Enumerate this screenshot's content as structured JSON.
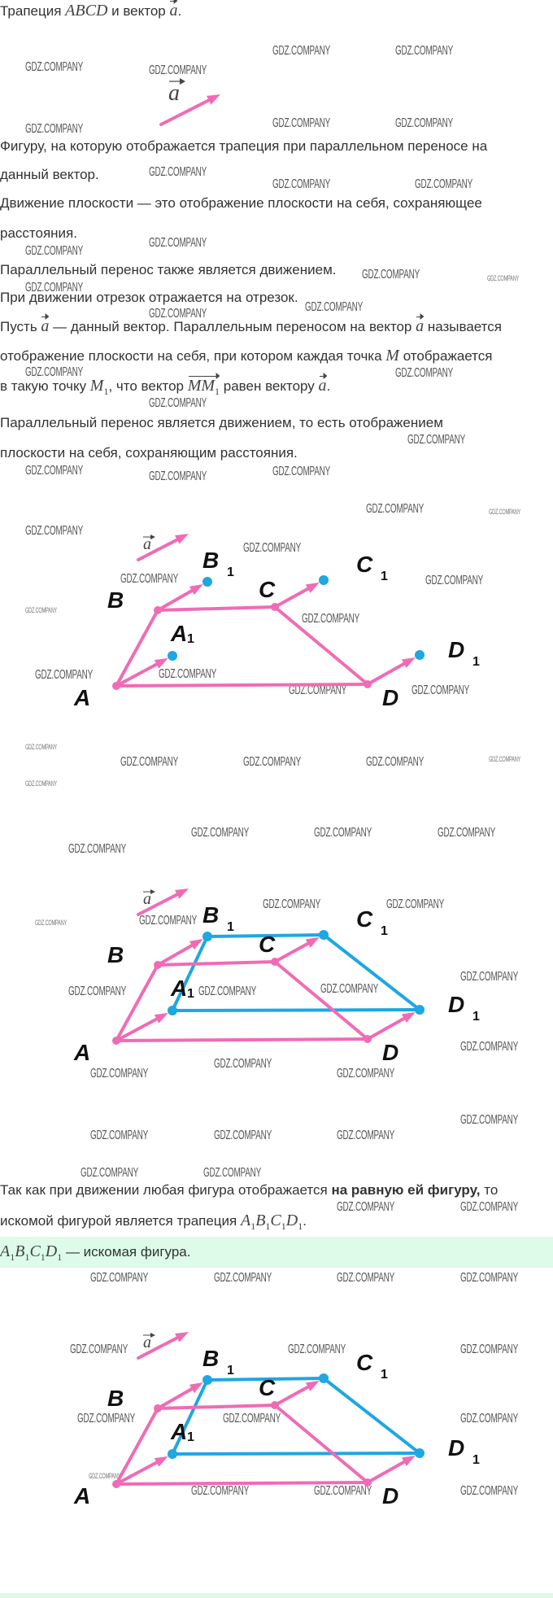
{
  "watermark": "GDZ.COMPANY",
  "colors": {
    "original": "#f06bb5",
    "image": "#1ea7e1",
    "highlight": "#ddfbe8"
  },
  "intro": [
    [
      {
        "t": "Трапеция "
      },
      {
        "m": "ABCD"
      },
      {
        "t": " и вектор "
      },
      {
        "v": "a"
      },
      {
        "t": "."
      }
    ]
  ],
  "vector_label": "a",
  "task": [
    [
      {
        "t": "Фигуру, на которую отображается трапеция при параллельном переносе на"
      }
    ],
    [
      {
        "t": "данный вектор."
      }
    ]
  ],
  "theory": [
    [
      {
        "t": "Движение плоскости — это отображение плоскости на себя, сохраняющее"
      }
    ],
    [
      {
        "t": "расстояния."
      }
    ],
    [
      {
        "t": "Параллельный перенос также является движением."
      }
    ],
    [
      {
        "t": "При движении отрезок отражается на отрезок."
      }
    ],
    [
      {
        "t": "Пусть "
      },
      {
        "v": "a"
      },
      {
        "t": " — данный вектор. Параллельным переносом на вектор "
      },
      {
        "v": "a"
      },
      {
        "t": " называется"
      }
    ],
    [
      {
        "t": "отображение плоскости на себя, при котором каждая точка "
      },
      {
        "m": "M"
      },
      {
        "t": " отображается"
      }
    ],
    [
      {
        "t": "в такую точку "
      },
      {
        "m": "M",
        "sub": "1"
      },
      {
        "t": ", что вектор "
      },
      {
        "v": "MM",
        "sub": "1"
      },
      {
        "t": " равен вектору "
      },
      {
        "v": "a"
      },
      {
        "t": "."
      }
    ],
    [
      {
        "t": "Параллельный перенос является движением, то есть отображением"
      }
    ],
    [
      {
        "t": "плоскости на себя, сохраняющим расстояния."
      }
    ]
  ],
  "conclusion": [
    [
      {
        "t": "Так как при движении любая фигура отображается "
      },
      {
        "b": "на равную ей фигуру,"
      },
      {
        "t": " то"
      }
    ],
    [
      {
        "t": "искомой фигурой является трапеция "
      },
      {
        "m": "A",
        "sub": "1"
      },
      {
        "m": "B",
        "sub": "1"
      },
      {
        "m": "C",
        "sub": "1"
      },
      {
        "m": "D",
        "sub": "1"
      },
      {
        "t": "."
      }
    ]
  ],
  "answer": [
    [
      {
        "m": "A",
        "sub": "1"
      },
      {
        "m": "B",
        "sub": "1"
      },
      {
        "m": "C",
        "sub": "1"
      },
      {
        "m": "D",
        "sub": "1"
      },
      {
        "t": " — искомая фигура."
      }
    ]
  ],
  "figure": {
    "points": {
      "A": "A",
      "B": "B",
      "C": "C",
      "D": "D",
      "A1": "A",
      "B1": "B",
      "C1": "C",
      "D1": "D"
    },
    "subscript": "1"
  }
}
